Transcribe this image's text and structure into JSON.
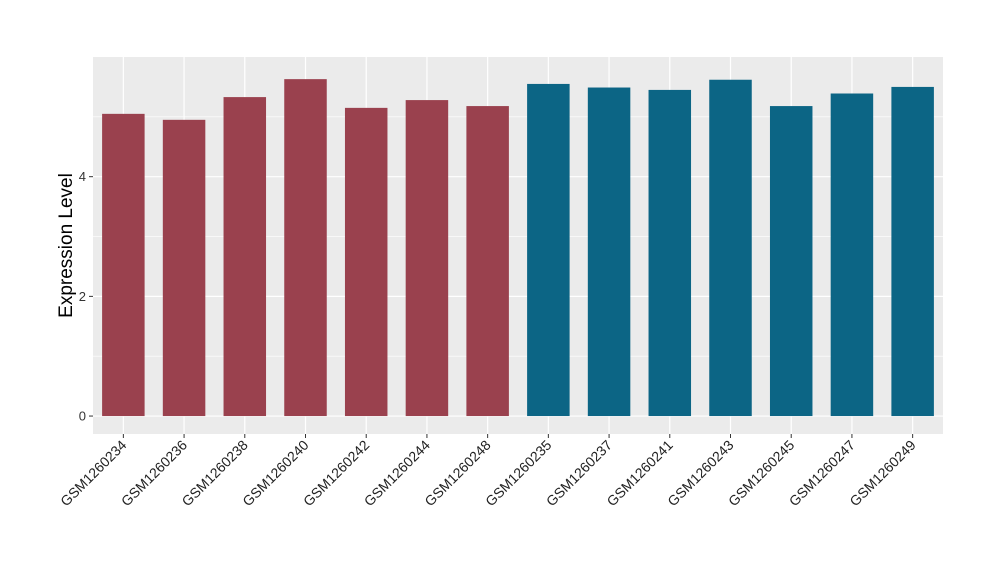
{
  "chart_data": {
    "type": "bar",
    "title": "",
    "xlabel": "",
    "ylabel": "Expression Level",
    "ylim": [
      -0.3,
      6.0
    ],
    "yticks": [
      0,
      2,
      4
    ],
    "grid": true,
    "categories": [
      "GSM1260234",
      "GSM1260236",
      "GSM1260238",
      "GSM1260240",
      "GSM1260242",
      "GSM1260244",
      "GSM1260248",
      "GSM1260235",
      "GSM1260237",
      "GSM1260241",
      "GSM1260243",
      "GSM1260245",
      "GSM1260247",
      "GSM1260249"
    ],
    "values": [
      5.05,
      4.95,
      5.33,
      5.63,
      5.15,
      5.28,
      5.18,
      5.55,
      5.49,
      5.45,
      5.62,
      5.18,
      5.39,
      5.5
    ],
    "group_colors": [
      "#9a414e",
      "#9a414e",
      "#9a414e",
      "#9a414e",
      "#9a414e",
      "#9a414e",
      "#9a414e",
      "#0c6585",
      "#0c6585",
      "#0c6585",
      "#0c6585",
      "#0c6585",
      "#0c6585",
      "#0c6585"
    ],
    "panel_background": "#ebebeb",
    "grid_color": "#ffffff"
  }
}
